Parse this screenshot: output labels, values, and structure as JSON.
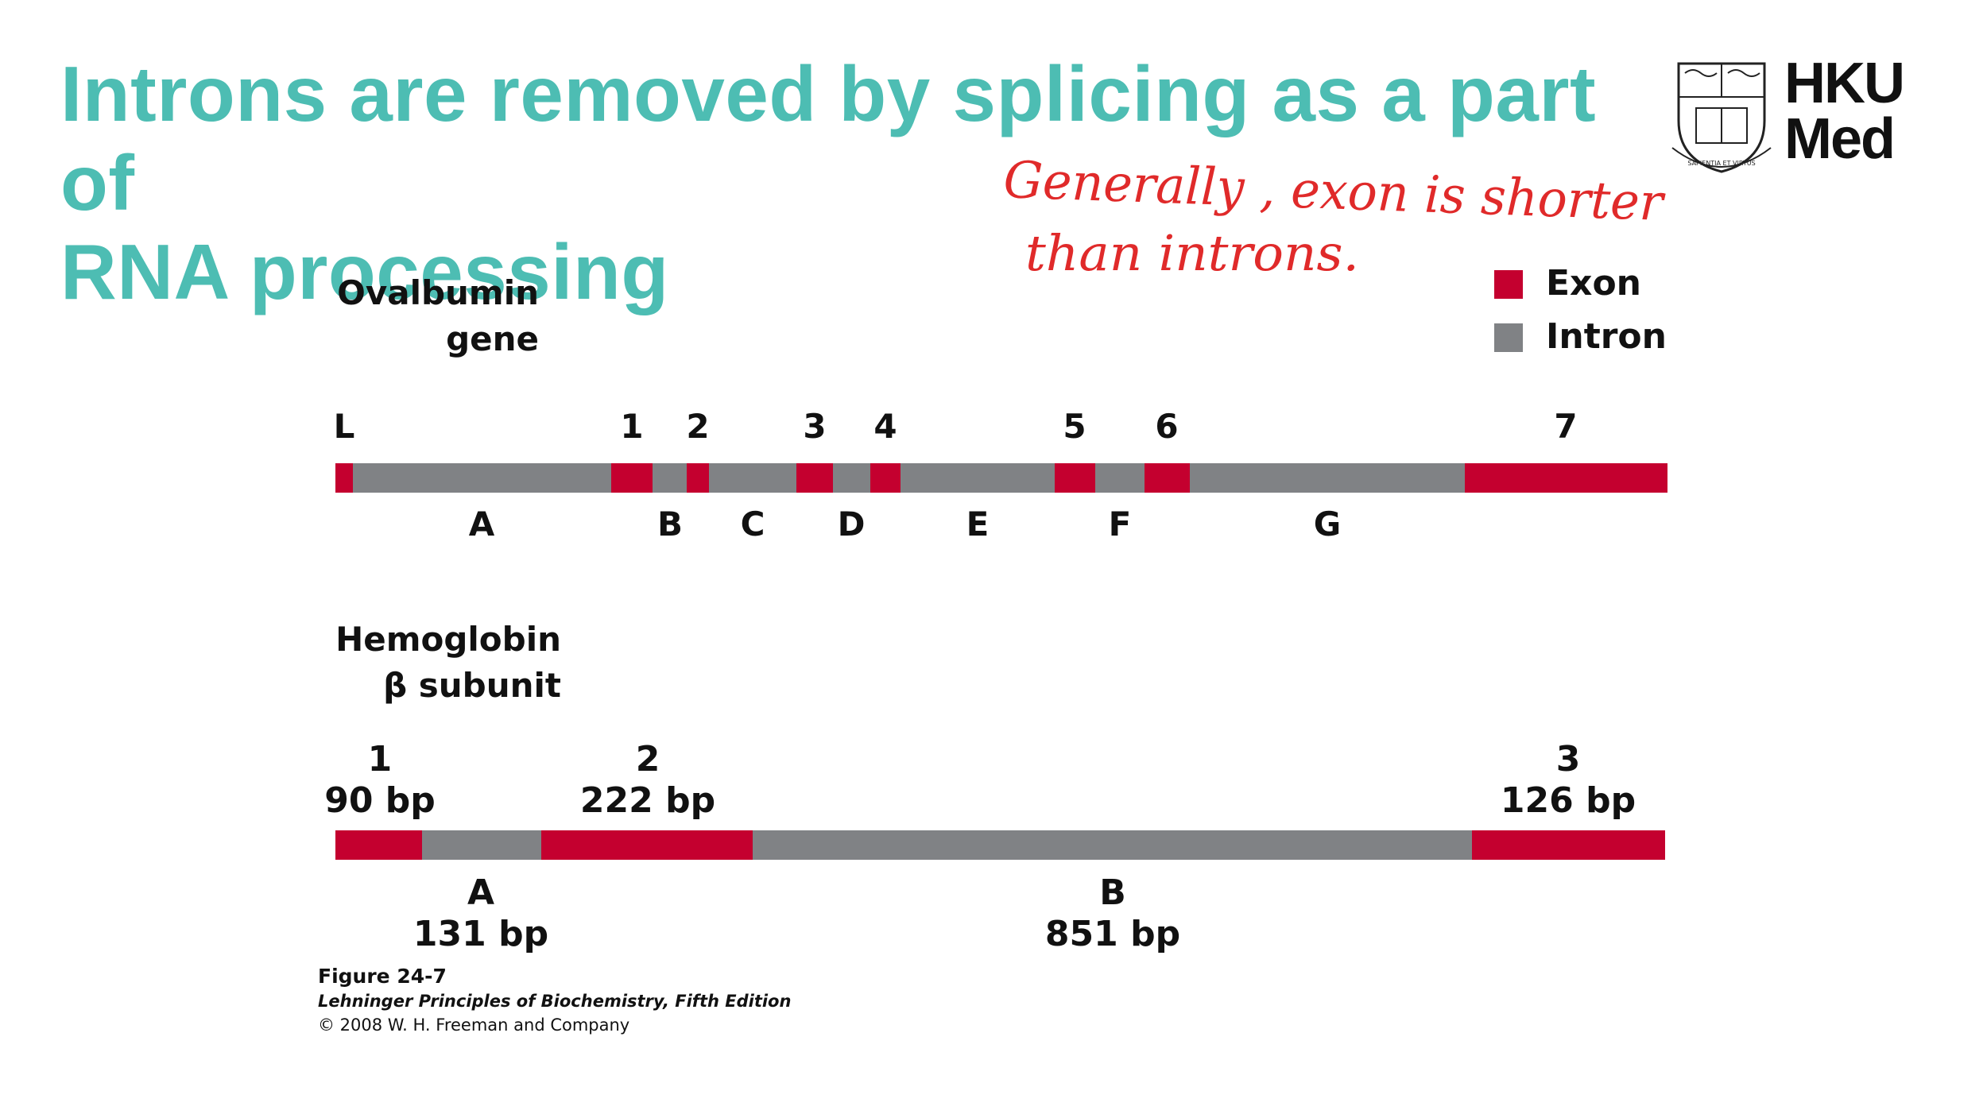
{
  "slide": {
    "title_line1": "Introns are removed by splicing as a part of",
    "title_line2": "RNA processing",
    "logo_line1": "HKU",
    "logo_line2": "Med",
    "seal_motto": "SAPIENTIA ET VIRTUS",
    "handwritten_note_line1": "Generally , exon is shorter",
    "handwritten_note_line2": "than introns.",
    "accent_color": "#4dbdb3",
    "note_color": "#e02a2a"
  },
  "legend": {
    "exon_label": "Exon",
    "intron_label": "Intron",
    "exon_color": "#c4002f",
    "intron_color": "#808285"
  },
  "ovalbumin": {
    "title_line1": "Ovalbumin",
    "title_line2": "gene",
    "exon_labels": [
      "L",
      "1",
      "2",
      "3",
      "4",
      "5",
      "6",
      "7"
    ],
    "intron_labels": [
      "A",
      "B",
      "C",
      "D",
      "E",
      "F",
      "G"
    ]
  },
  "hemoglobin": {
    "title_line1": "Hemoglobin",
    "title_line2": "β subunit",
    "exons": [
      {
        "label": "1",
        "length": "90 bp"
      },
      {
        "label": "2",
        "length": "222 bp"
      },
      {
        "label": "3",
        "length": "126 bp"
      }
    ],
    "introns": [
      {
        "label": "A",
        "length": "131 bp"
      },
      {
        "label": "B",
        "length": "851 bp"
      }
    ]
  },
  "caption": {
    "figure": "Figure 24-7",
    "book": "Lehninger Principles of Biochemistry, Fifth Edition",
    "copyright": "© 2008 W. H. Freeman and Company"
  }
}
